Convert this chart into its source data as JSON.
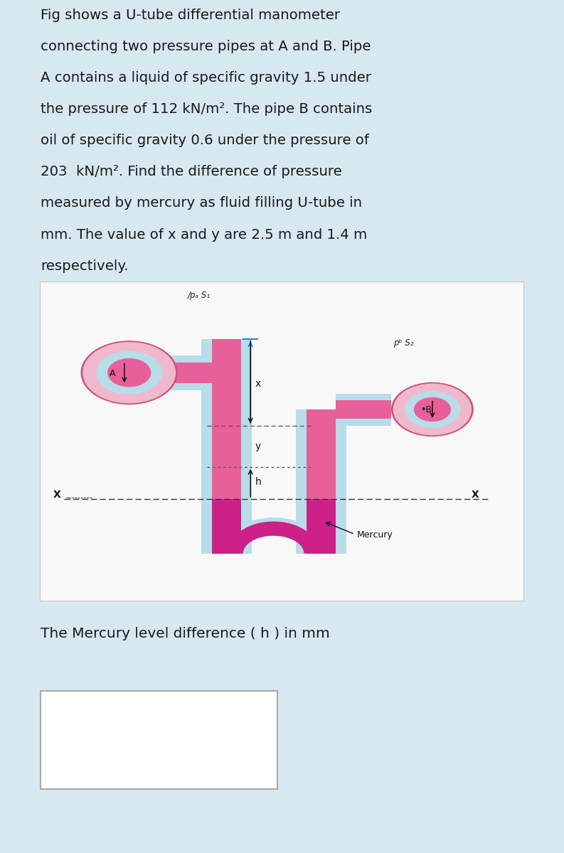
{
  "bg_color": "#d8e8f0",
  "white": "#ffffff",
  "text_color": "#1a1a1a",
  "problem_lines": [
    "Fig shows a U-tube differential manometer",
    "connecting two pressure pipes at A and B. Pipe",
    "A contains a liquid of specific gravity 1.5 under",
    "the pressure of 112 kN/m². The pipe B contains",
    "oil of specific gravity 0.6 under the pressure of",
    "203  kN/m². Find the difference of pressure",
    "measured by mercury as fluid filling U-tube in",
    "mm. The value of x and y are 2.5 m and 1.4 m",
    "respectively."
  ],
  "answer_label": "The Mercury level difference ( h ) in mm",
  "diagram_bg": "#f8f8f8",
  "pipe_pink": "#e8609a",
  "pipe_magenta": "#d0307a",
  "mercury_magenta": "#cc2288",
  "circle_fill_pink": "#f0b8cc",
  "circle_hatch": "#b8dce8",
  "circle_border": "#d05080",
  "dashed_color": "#444444",
  "arrow_color": "#111111",
  "blue_arrow": "#2288cc",
  "label_PaS1": "/pₐ S₁",
  "label_PbS2": "pᵇ S₂",
  "label_Mercury": "Mercury"
}
